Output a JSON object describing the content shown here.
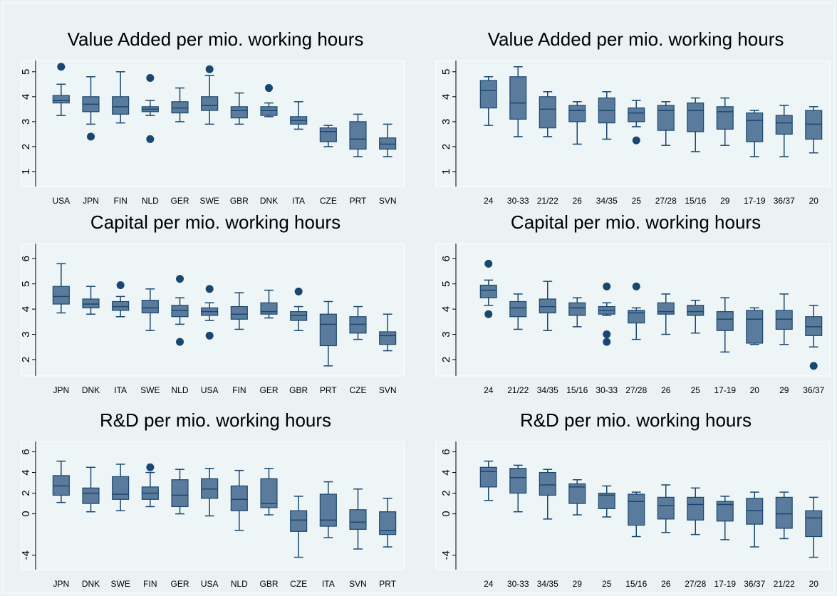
{
  "chart_data": [
    {
      "type": "box",
      "title": "Value Added per mio. working hours",
      "color": "#5b7b9c",
      "edge_color": "#1a476f",
      "categories": [
        "USA",
        "JPN",
        "FIN",
        "NLD",
        "GER",
        "SWE",
        "GBR",
        "DNK",
        "ITA",
        "CZE",
        "PRT",
        "SVN"
      ],
      "whisker_low": [
        3.25,
        2.9,
        2.95,
        3.25,
        3.0,
        2.9,
        2.9,
        3.2,
        2.7,
        2.0,
        1.6,
        1.6
      ],
      "q1": [
        3.75,
        3.4,
        3.3,
        3.4,
        3.35,
        3.45,
        3.15,
        3.25,
        2.9,
        2.2,
        1.9,
        1.9
      ],
      "median": [
        3.85,
        3.7,
        3.6,
        3.5,
        3.55,
        3.65,
        3.45,
        3.45,
        3.05,
        2.6,
        2.3,
        2.1
      ],
      "q3": [
        4.05,
        4.0,
        4.0,
        3.6,
        3.8,
        4.0,
        3.6,
        3.6,
        3.2,
        2.75,
        3.0,
        2.35
      ],
      "whisker_high": [
        4.5,
        4.8,
        5.0,
        3.85,
        4.35,
        4.85,
        4.15,
        3.75,
        3.8,
        2.85,
        3.3,
        2.9
      ],
      "outliers": [
        [
          5.2
        ],
        [
          2.4
        ],
        [],
        [
          4.75,
          2.3
        ],
        [],
        [
          5.1
        ],
        [],
        [
          4.35
        ],
        [],
        [],
        [],
        []
      ],
      "ylim": [
        0.4,
        5.45
      ],
      "yticks": [
        1,
        2,
        3,
        4,
        5
      ]
    },
    {
      "type": "box",
      "title": "Value Added per mio. working hours",
      "color": "#5b7b9c",
      "edge_color": "#1a476f",
      "categories": [
        "24",
        "30-33",
        "21/22",
        "26",
        "34/35",
        "25",
        "27/28",
        "15/16",
        "29",
        "17-19",
        "36/37",
        "20"
      ],
      "whisker_low": [
        2.85,
        2.4,
        2.4,
        2.1,
        2.3,
        2.8,
        2.05,
        1.8,
        2.05,
        1.6,
        1.6,
        1.75
      ],
      "q1": [
        3.55,
        3.1,
        2.75,
        3.0,
        2.95,
        3.0,
        2.65,
        2.6,
        2.7,
        2.2,
        2.5,
        2.3
      ],
      "median": [
        4.25,
        3.75,
        3.5,
        3.45,
        3.45,
        3.35,
        3.45,
        3.45,
        3.4,
        3.05,
        2.95,
        2.9
      ],
      "q3": [
        4.65,
        4.8,
        4.0,
        3.65,
        3.95,
        3.55,
        3.65,
        3.75,
        3.6,
        3.35,
        3.25,
        3.45
      ],
      "whisker_high": [
        4.8,
        5.2,
        4.2,
        3.8,
        4.2,
        3.85,
        3.8,
        3.95,
        3.95,
        3.45,
        3.65,
        3.6
      ],
      "outliers": [
        [],
        [],
        [],
        [],
        [],
        [
          2.25
        ],
        [],
        [],
        [],
        [],
        [],
        []
      ],
      "ylim": [
        0.4,
        5.45
      ],
      "yticks": [
        1,
        2,
        3,
        4,
        5
      ]
    },
    {
      "type": "box",
      "title": "Capital per mio. working hours",
      "color": "#5b7b9c",
      "edge_color": "#1a476f",
      "categories": [
        "JPN",
        "DNK",
        "ITA",
        "SWE",
        "NLD",
        "USA",
        "FIN",
        "GER",
        "GBR",
        "PRT",
        "CZE",
        "SVN"
      ],
      "whisker_low": [
        3.85,
        3.8,
        3.7,
        3.15,
        3.4,
        3.55,
        3.2,
        3.65,
        3.15,
        1.75,
        2.8,
        2.35
      ],
      "q1": [
        4.2,
        4.05,
        3.95,
        3.85,
        3.7,
        3.75,
        3.6,
        3.8,
        3.55,
        2.55,
        3.05,
        2.6
      ],
      "median": [
        4.5,
        4.2,
        4.1,
        4.05,
        3.95,
        3.9,
        3.8,
        3.9,
        3.75,
        3.4,
        3.4,
        2.95
      ],
      "q3": [
        4.9,
        4.4,
        4.3,
        4.35,
        4.15,
        4.05,
        4.1,
        4.25,
        3.9,
        3.8,
        3.7,
        3.1
      ],
      "whisker_high": [
        5.8,
        4.9,
        4.5,
        4.8,
        4.45,
        4.25,
        4.65,
        4.75,
        4.1,
        4.3,
        4.1,
        3.8
      ],
      "outliers": [
        [],
        [],
        [
          4.95
        ],
        [],
        [
          5.2,
          2.7
        ],
        [
          4.8,
          2.95
        ],
        [],
        [],
        [
          4.7
        ],
        [],
        [],
        []
      ],
      "ylim": [
        1.35,
        6.6
      ],
      "yticks": [
        2,
        3,
        4,
        5,
        6
      ]
    },
    {
      "type": "box",
      "title": "Capital per mio. working hours",
      "color": "#5b7b9c",
      "edge_color": "#1a476f",
      "categories": [
        "24",
        "21/22",
        "34/35",
        "15/16",
        "30-33",
        "27/28",
        "26",
        "25",
        "17-19",
        "20",
        "29",
        "36/37"
      ],
      "whisker_low": [
        4.15,
        3.2,
        3.15,
        3.3,
        3.75,
        2.8,
        3.0,
        3.05,
        2.3,
        2.6,
        2.6,
        2.5
      ],
      "q1": [
        4.45,
        3.7,
        3.85,
        3.75,
        3.8,
        3.45,
        3.8,
        3.75,
        3.15,
        2.65,
        3.2,
        2.95
      ],
      "median": [
        4.75,
        4.05,
        4.1,
        4.05,
        3.95,
        3.85,
        3.9,
        3.9,
        3.6,
        3.6,
        3.6,
        3.3
      ],
      "q3": [
        4.95,
        4.3,
        4.4,
        4.25,
        4.1,
        3.95,
        4.25,
        4.15,
        3.9,
        3.95,
        3.95,
        3.7
      ],
      "whisker_high": [
        5.15,
        4.6,
        5.1,
        4.45,
        4.25,
        4.05,
        4.6,
        4.35,
        4.45,
        4.05,
        4.6,
        4.15
      ],
      "outliers": [
        [
          5.8,
          3.8
        ],
        [],
        [],
        [],
        [
          4.9,
          3.0,
          2.7
        ],
        [
          4.9
        ],
        [],
        [],
        [],
        [],
        [],
        [
          1.75
        ]
      ],
      "ylim": [
        1.35,
        6.6
      ],
      "yticks": [
        2,
        3,
        4,
        5,
        6
      ]
    },
    {
      "type": "box",
      "title": "R&D per mio. working hours",
      "color": "#5b7b9c",
      "edge_color": "#1a476f",
      "categories": [
        "JPN",
        "DNK",
        "SWE",
        "FIN",
        "GER",
        "USA",
        "NLD",
        "GBR",
        "CZE",
        "ITA",
        "SVN",
        "PRT"
      ],
      "whisker_low": [
        1.1,
        0.2,
        0.3,
        0.7,
        0.0,
        -0.2,
        -1.6,
        -0.1,
        -4.2,
        -2.3,
        -3.4,
        -3.2
      ],
      "q1": [
        1.8,
        1.0,
        1.4,
        1.4,
        0.7,
        1.5,
        0.3,
        0.6,
        -1.7,
        -1.2,
        -1.5,
        -2.0
      ],
      "median": [
        2.7,
        2.0,
        1.9,
        2.0,
        1.8,
        2.4,
        1.4,
        1.0,
        -0.6,
        -0.6,
        -0.8,
        -1.6
      ],
      "q3": [
        3.7,
        2.5,
        3.6,
        2.6,
        3.3,
        3.4,
        2.7,
        3.4,
        0.3,
        1.9,
        0.4,
        0.2
      ],
      "whisker_high": [
        5.1,
        4.5,
        4.8,
        4.0,
        4.3,
        4.4,
        4.2,
        4.4,
        1.7,
        3.1,
        2.4,
        1.5
      ],
      "outliers": [
        [],
        [],
        [],
        [
          4.5
        ],
        [],
        [],
        [],
        [],
        [],
        [],
        [],
        []
      ],
      "ylim": [
        -5.4,
        7
      ],
      "yticks": [
        6,
        4,
        2,
        0,
        -4
      ]
    },
    {
      "type": "box",
      "title": "R&D per mio. working hours",
      "color": "#5b7b9c",
      "edge_color": "#1a476f",
      "categories": [
        "24",
        "30-33",
        "34/35",
        "29",
        "25",
        "15/16",
        "26",
        "27/28",
        "17-19",
        "36/37",
        "21/22",
        "20"
      ],
      "whisker_low": [
        1.3,
        0.2,
        -0.5,
        -0.1,
        -0.3,
        -2.2,
        -1.8,
        -2.0,
        -2.5,
        -3.2,
        -2.4,
        -4.2
      ],
      "q1": [
        2.6,
        2.0,
        1.8,
        1.0,
        0.5,
        -1.1,
        -0.5,
        -0.6,
        -0.7,
        -1.0,
        -1.4,
        -2.2
      ],
      "median": [
        4.1,
        3.5,
        2.8,
        2.6,
        1.8,
        1.2,
        0.8,
        0.9,
        0.9,
        0.3,
        0.0,
        -0.4
      ],
      "q3": [
        4.5,
        4.4,
        4.0,
        2.9,
        2.0,
        1.9,
        1.6,
        1.6,
        1.2,
        1.5,
        1.6,
        0.3
      ],
      "whisker_high": [
        5.1,
        4.7,
        4.3,
        3.3,
        2.7,
        2.1,
        2.8,
        2.5,
        1.7,
        2.1,
        2.1,
        1.6
      ],
      "outliers": [
        [],
        [],
        [],
        [],
        [],
        [],
        [],
        [],
        [],
        [],
        [],
        []
      ],
      "ylim": [
        -5.4,
        7
      ],
      "yticks": [
        6,
        4,
        2,
        0,
        -4
      ]
    }
  ]
}
